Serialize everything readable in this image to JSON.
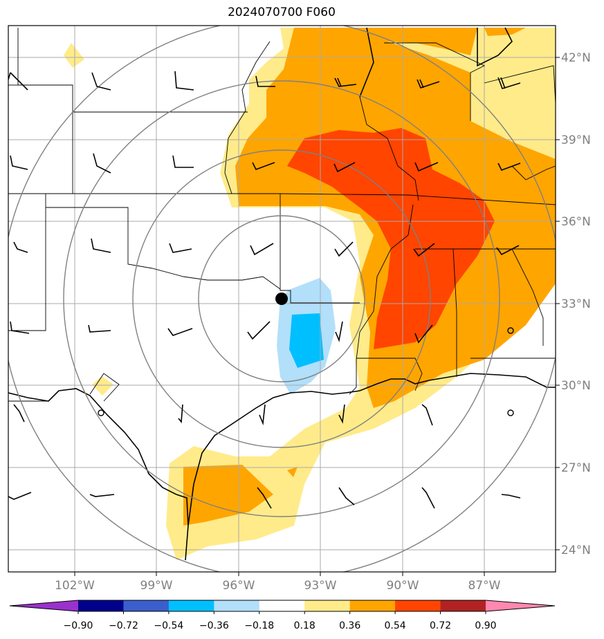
{
  "title": "2024070700 F060",
  "axes": {
    "lon_ticks": [
      "102°W",
      "99°W",
      "96°W",
      "93°W",
      "90°W",
      "87°W"
    ],
    "lat_ticks": [
      "42°N",
      "39°N",
      "36°N",
      "33°N",
      "30°N",
      "27°N",
      "24°N"
    ]
  },
  "colorbar": {
    "labels": [
      "−0.90",
      "−0.72",
      "−0.54",
      "−0.36",
      "−0.18",
      "0.18",
      "0.36",
      "0.54",
      "0.72",
      "0.90"
    ],
    "colors": [
      "#9932CC",
      "#00008B",
      "#3A5FCD",
      "#00BFFF",
      "#B2DFFA",
      "#FFFFFF",
      "#FFEB8A",
      "#FFA500",
      "#FF4500",
      "#B22222",
      "#FF88B0"
    ]
  },
  "colors": {
    "light_yellow": "#FFEB8A",
    "orange": "#FFA500",
    "red_orange": "#FF4500",
    "light_blue": "#B2DFFA",
    "deep_sky_blue": "#00BFFF",
    "gridlines": "#AAAAAA",
    "range_rings": "#808080"
  },
  "marker": {
    "icon": "black-dot-icon",
    "lon": -94.5,
    "lat": 33.2
  }
}
